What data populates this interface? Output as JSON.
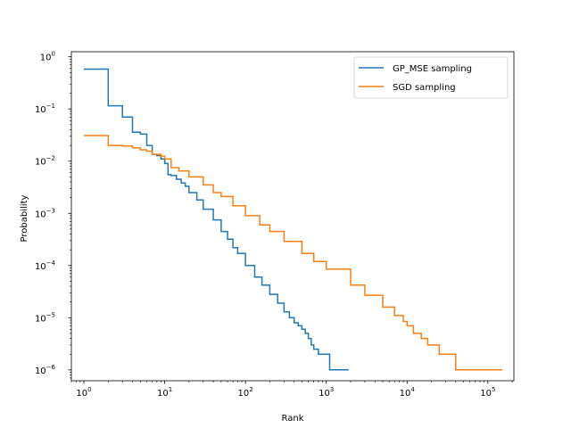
{
  "chart_data": {
    "type": "line",
    "title": "",
    "xlabel": "Rank",
    "ylabel": "Probability",
    "xscale": "log",
    "yscale": "log",
    "xlim": [
      0.7,
      210000
    ],
    "ylim": [
      6.2e-07,
      1.25
    ],
    "grid": false,
    "legend_position": "top-right",
    "x_ticks": [
      {
        "value": 1,
        "base": "10",
        "exp": "0"
      },
      {
        "value": 10,
        "base": "10",
        "exp": "1"
      },
      {
        "value": 100,
        "base": "10",
        "exp": "2"
      },
      {
        "value": 1000,
        "base": "10",
        "exp": "3"
      },
      {
        "value": 10000,
        "base": "10",
        "exp": "4"
      },
      {
        "value": 100000,
        "base": "10",
        "exp": "5"
      }
    ],
    "y_ticks": [
      {
        "value": 1,
        "base": "10",
        "exp": "0"
      },
      {
        "value": 0.1,
        "base": "10",
        "exp": "−1"
      },
      {
        "value": 0.01,
        "base": "10",
        "exp": "−2"
      },
      {
        "value": 0.001,
        "base": "10",
        "exp": "−3"
      },
      {
        "value": 0.0001,
        "base": "10",
        "exp": "−4"
      },
      {
        "value": 1e-05,
        "base": "10",
        "exp": "−5"
      },
      {
        "value": 1e-06,
        "base": "10",
        "exp": "−6"
      }
    ],
    "series": [
      {
        "name": "GP_MSE sampling",
        "color": "#1f77b4",
        "step": true,
        "x": [
          1,
          2,
          3,
          4,
          5,
          6,
          7,
          8,
          9,
          10,
          11,
          12,
          14,
          16,
          18,
          20,
          25,
          30,
          40,
          50,
          60,
          70,
          80,
          100,
          130,
          160,
          200,
          250,
          300,
          350,
          400,
          450,
          500,
          550,
          600,
          650,
          700,
          800,
          1000,
          1100,
          1900
        ],
        "y": [
          0.58,
          0.115,
          0.07,
          0.036,
          0.033,
          0.02,
          0.0135,
          0.0128,
          0.011,
          0.009,
          0.0055,
          0.0053,
          0.0045,
          0.0038,
          0.0033,
          0.0025,
          0.0018,
          0.0012,
          0.00075,
          0.00045,
          0.00032,
          0.00022,
          0.00017,
          0.0001,
          6e-05,
          4.2e-05,
          2.8e-05,
          1.9e-05,
          1.3e-05,
          1e-05,
          8e-06,
          7e-06,
          6e-06,
          5e-06,
          4e-06,
          3e-06,
          2.5e-06,
          2e-06,
          2e-06,
          1e-06,
          1e-06
        ]
      },
      {
        "name": "SGD sampling",
        "color": "#ff7f0e",
        "step": true,
        "x": [
          1,
          2,
          3,
          4,
          5,
          6,
          7,
          8,
          9,
          10,
          12,
          15,
          20,
          30,
          40,
          50,
          70,
          100,
          150,
          200,
          300,
          500,
          700,
          1000,
          2000,
          3000,
          5000,
          7000,
          9000,
          10000,
          12000,
          15000,
          18000,
          25000,
          40000,
          150000
        ],
        "y": [
          0.031,
          0.02,
          0.0195,
          0.018,
          0.0165,
          0.0155,
          0.0135,
          0.0135,
          0.0125,
          0.011,
          0.0075,
          0.0065,
          0.005,
          0.0035,
          0.0025,
          0.0021,
          0.0014,
          0.0009,
          0.0006,
          0.00045,
          0.00029,
          0.00017,
          0.00012,
          8.5e-05,
          4.2e-05,
          2.7e-05,
          1.6e-05,
          1.1e-05,
          8.5e-06,
          7e-06,
          5e-06,
          4e-06,
          3e-06,
          2e-06,
          1e-06,
          1e-06
        ]
      }
    ]
  }
}
